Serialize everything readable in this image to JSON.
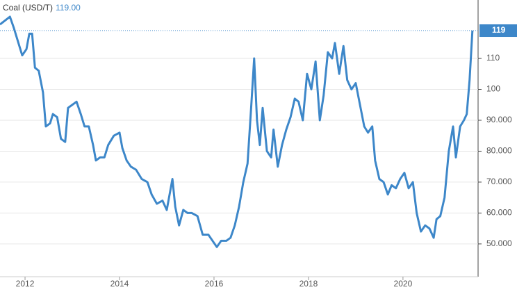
{
  "chart_data": {
    "type": "line",
    "title": "Coal (USD/T)",
    "current_label": "119.00",
    "current_value": 119,
    "color": "#3d87c9",
    "grid": true,
    "xlim": [
      2011.47,
      2021.59
    ],
    "xticks": [
      2012,
      2014,
      2016,
      2018,
      2020
    ],
    "ylim": [
      39.4,
      128.9
    ],
    "yticks": [
      {
        "value": 50,
        "label": "50.000"
      },
      {
        "value": 60,
        "label": "60.000"
      },
      {
        "value": 70,
        "label": "70.000"
      },
      {
        "value": 80,
        "label": "80.000"
      },
      {
        "value": 90,
        "label": "90.000"
      },
      100,
      110
    ],
    "x": [
      2011.47,
      2011.68,
      2011.76,
      2011.94,
      2012.03,
      2012.09,
      2012.15,
      2012.21,
      2012.29,
      2012.38,
      2012.44,
      2012.53,
      2012.59,
      2012.68,
      2012.76,
      2012.85,
      2012.91,
      2013.0,
      2013.09,
      2013.18,
      2013.26,
      2013.35,
      2013.44,
      2013.5,
      2013.59,
      2013.68,
      2013.76,
      2013.88,
      2014.0,
      2014.06,
      2014.15,
      2014.24,
      2014.35,
      2014.47,
      2014.59,
      2014.68,
      2014.79,
      2014.91,
      2015.0,
      2015.12,
      2015.18,
      2015.26,
      2015.35,
      2015.44,
      2015.53,
      2015.65,
      2015.76,
      2015.88,
      2015.97,
      2016.06,
      2016.15,
      2016.26,
      2016.35,
      2016.44,
      2016.53,
      2016.62,
      2016.71,
      2016.79,
      2016.85,
      2016.91,
      2016.97,
      2017.03,
      2017.12,
      2017.21,
      2017.26,
      2017.35,
      2017.44,
      2017.53,
      2017.62,
      2017.71,
      2017.79,
      2017.88,
      2017.97,
      2018.06,
      2018.15,
      2018.24,
      2018.32,
      2018.41,
      2018.5,
      2018.56,
      2018.65,
      2018.74,
      2018.82,
      2018.91,
      2019.0,
      2019.09,
      2019.18,
      2019.26,
      2019.35,
      2019.41,
      2019.5,
      2019.59,
      2019.68,
      2019.76,
      2019.85,
      2019.94,
      2020.03,
      2020.12,
      2020.21,
      2020.29,
      2020.38,
      2020.47,
      2020.56,
      2020.65,
      2020.71,
      2020.79,
      2020.88,
      2020.97,
      2021.06,
      2021.12,
      2021.21,
      2021.29,
      2021.35,
      2021.41,
      2021.47
    ],
    "values": [
      121,
      123.5,
      120,
      111,
      113,
      118,
      118,
      107,
      106,
      99,
      88,
      89,
      92,
      91,
      84,
      83,
      94,
      95,
      96,
      92,
      88,
      88,
      82,
      77,
      78,
      78,
      82,
      85,
      86,
      81,
      77,
      75,
      74,
      71,
      70,
      66,
      63,
      64,
      61,
      71,
      62,
      56,
      61,
      60,
      60,
      59,
      53,
      53,
      51,
      49,
      51,
      51,
      52,
      56,
      62,
      70,
      76,
      95,
      110,
      90,
      82,
      94,
      80,
      78,
      87,
      75,
      82,
      87,
      91,
      97,
      96,
      90,
      105,
      100,
      109,
      90,
      98,
      112,
      110,
      115,
      105,
      114,
      103,
      100,
      102,
      95,
      88,
      86,
      88,
      77,
      71,
      70,
      66,
      69,
      68,
      71,
      73,
      68,
      70,
      60,
      54,
      56,
      55,
      52,
      58,
      59,
      65,
      80,
      88,
      78,
      88,
      90,
      92,
      103,
      119
    ]
  }
}
